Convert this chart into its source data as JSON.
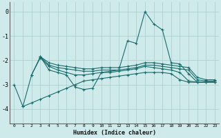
{
  "background_color": "#ceeaea",
  "grid_color": "#aed0d0",
  "line_color": "#1a6b6b",
  "xlabel": "Humidex (Indice chaleur)",
  "xlim": [
    -0.5,
    23.5
  ],
  "ylim": [
    -4.6,
    0.4
  ],
  "yticks": [
    0,
    -1,
    -2,
    -3,
    -4
  ],
  "xticks": [
    0,
    1,
    2,
    3,
    4,
    5,
    6,
    7,
    8,
    9,
    10,
    11,
    12,
    13,
    14,
    15,
    16,
    17,
    18,
    19,
    20,
    21,
    22,
    23
  ],
  "series": [
    {
      "x": [
        0,
        1,
        2,
        3,
        4,
        5,
        6,
        7,
        8,
        9,
        10,
        11,
        12,
        13,
        14,
        15,
        16,
        17,
        18,
        19,
        20,
        21,
        22,
        23
      ],
      "y": [
        -3.0,
        -3.9,
        -2.6,
        -1.85,
        -2.4,
        -2.5,
        -2.6,
        -3.1,
        -3.2,
        -3.15,
        -2.5,
        -2.45,
        -2.4,
        -1.2,
        -1.3,
        0.0,
        -0.5,
        -0.75,
        -2.1,
        -2.15,
        -2.55,
        -2.9,
        -2.9,
        -2.9
      ]
    },
    {
      "x": [
        3,
        4,
        5,
        6,
        7,
        8,
        9,
        10,
        11,
        12,
        13,
        14,
        15,
        16,
        17,
        18,
        19,
        20,
        21,
        22,
        23
      ],
      "y": [
        -1.85,
        -2.1,
        -2.2,
        -2.25,
        -2.3,
        -2.35,
        -2.35,
        -2.3,
        -2.3,
        -2.3,
        -2.25,
        -2.2,
        -2.1,
        -2.1,
        -2.15,
        -2.2,
        -2.25,
        -2.3,
        -2.7,
        -2.8,
        -2.8
      ]
    },
    {
      "x": [
        3,
        4,
        5,
        6,
        7,
        8,
        9,
        10,
        11,
        12,
        13,
        14,
        15,
        16,
        17,
        18,
        19,
        20,
        21,
        22,
        23
      ],
      "y": [
        -1.85,
        -2.2,
        -2.3,
        -2.35,
        -2.4,
        -2.45,
        -2.45,
        -2.4,
        -2.4,
        -2.4,
        -2.35,
        -2.3,
        -2.2,
        -2.2,
        -2.25,
        -2.3,
        -2.35,
        -2.4,
        -2.8,
        -2.85,
        -2.85
      ]
    },
    {
      "x": [
        2,
        3,
        4,
        5,
        6,
        7,
        8,
        9,
        10,
        11,
        12,
        13,
        14,
        15,
        16,
        17,
        18,
        19,
        20,
        21,
        22,
        23
      ],
      "y": [
        -2.6,
        -1.9,
        -2.25,
        -2.4,
        -2.5,
        -2.6,
        -2.6,
        -2.55,
        -2.5,
        -2.5,
        -2.45,
        -2.4,
        -2.35,
        -2.25,
        -2.3,
        -2.35,
        -2.4,
        -2.5,
        -2.85,
        -2.9,
        -2.9,
        -2.9
      ]
    },
    {
      "x": [
        1,
        2,
        3,
        4,
        5,
        6,
        7,
        8,
        9,
        10,
        11,
        12,
        13,
        14,
        15,
        16,
        17,
        18,
        19,
        20,
        21,
        22,
        23
      ],
      "y": [
        -3.9,
        -3.75,
        -3.6,
        -3.45,
        -3.3,
        -3.15,
        -3.0,
        -2.85,
        -2.8,
        -2.75,
        -2.7,
        -2.65,
        -2.6,
        -2.55,
        -2.5,
        -2.5,
        -2.5,
        -2.55,
        -2.8,
        -2.9,
        -2.9,
        -2.9,
        -2.9
      ]
    }
  ]
}
